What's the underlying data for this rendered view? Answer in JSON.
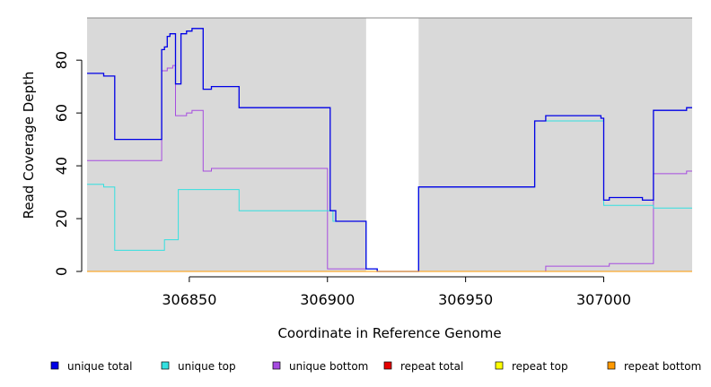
{
  "chart_data": {
    "type": "line",
    "xlabel": "Coordinate in Reference Genome",
    "ylabel": "Read Coverage Depth",
    "xlim": [
      306813,
      307032
    ],
    "ylim": [
      0,
      96
    ],
    "x_ticks": [
      306850,
      306900,
      306950,
      307000
    ],
    "y_ticks": [
      0,
      20,
      40,
      60,
      80
    ],
    "step": true,
    "legend_position": "bottom",
    "background": "#d9d9d9",
    "shaded_regions": [
      {
        "from": 306813,
        "to": 306914
      },
      {
        "from": 306933,
        "to": 307032
      }
    ],
    "series": [
      {
        "name": "unique total",
        "color": "#0000e6",
        "points": [
          [
            306813,
            75
          ],
          [
            306819,
            74
          ],
          [
            306823,
            50
          ],
          [
            306840,
            84
          ],
          [
            306841,
            85
          ],
          [
            306842,
            89
          ],
          [
            306843,
            90
          ],
          [
            306845,
            71
          ],
          [
            306847,
            90
          ],
          [
            306849,
            91
          ],
          [
            306851,
            92
          ],
          [
            306855,
            69
          ],
          [
            306858,
            70
          ],
          [
            306868,
            62
          ],
          [
            306901,
            23
          ],
          [
            306903,
            19
          ],
          [
            306914,
            1
          ],
          [
            306918,
            0
          ],
          [
            306933,
            32
          ],
          [
            306975,
            57
          ],
          [
            306979,
            59
          ],
          [
            306999,
            58
          ],
          [
            307000,
            27
          ],
          [
            307002,
            28
          ],
          [
            307014,
            27
          ],
          [
            307018,
            61
          ],
          [
            307030,
            62
          ],
          [
            307032,
            62
          ]
        ]
      },
      {
        "name": "unique top",
        "color": "#33e0e0",
        "points": [
          [
            306813,
            33
          ],
          [
            306819,
            32
          ],
          [
            306823,
            8
          ],
          [
            306841,
            12
          ],
          [
            306846,
            31
          ],
          [
            306868,
            23
          ],
          [
            306902,
            19
          ],
          [
            306914,
            1
          ],
          [
            306918,
            0
          ],
          [
            306933,
            32
          ],
          [
            306975,
            57
          ],
          [
            306979,
            57
          ],
          [
            307000,
            25
          ],
          [
            307018,
            24
          ],
          [
            307032,
            24
          ]
        ]
      },
      {
        "name": "unique bottom",
        "color": "#a64ce0",
        "points": [
          [
            306813,
            42
          ],
          [
            306840,
            76
          ],
          [
            306842,
            77
          ],
          [
            306844,
            78
          ],
          [
            306845,
            59
          ],
          [
            306849,
            60
          ],
          [
            306851,
            61
          ],
          [
            306855,
            38
          ],
          [
            306858,
            39
          ],
          [
            306900,
            1
          ],
          [
            306914,
            1
          ],
          [
            306918,
            0
          ],
          [
            306979,
            2
          ],
          [
            307002,
            3
          ],
          [
            307018,
            37
          ],
          [
            307030,
            38
          ],
          [
            307032,
            38
          ]
        ]
      },
      {
        "name": "repeat total",
        "color": "#e60000",
        "points": [
          [
            306813,
            0
          ],
          [
            307032,
            0
          ]
        ]
      },
      {
        "name": "repeat top",
        "color": "#ffff00",
        "points": [
          [
            306813,
            0
          ],
          [
            307032,
            0
          ]
        ]
      },
      {
        "name": "repeat bottom",
        "color": "#ff9900",
        "points": [
          [
            306813,
            0
          ],
          [
            307032,
            0
          ]
        ]
      }
    ]
  }
}
